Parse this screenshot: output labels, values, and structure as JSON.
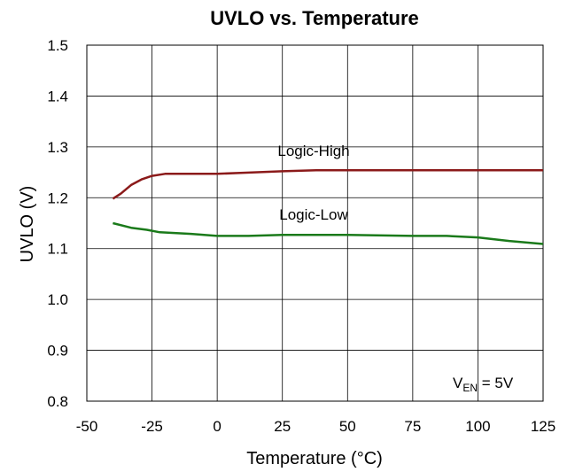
{
  "chart_data": {
    "type": "line",
    "title": "UVLO vs. Temperature",
    "xlabel": "Temperature (°C)",
    "ylabel": "UVLO (V)",
    "xlim": [
      -50,
      125
    ],
    "ylim": [
      0.8,
      1.5
    ],
    "x_ticks": [
      "-50",
      "-25",
      "0",
      "25",
      "50",
      "75",
      "100",
      "125"
    ],
    "y_ticks": [
      "0.8",
      "0.9",
      "1.0",
      "1.1",
      "1.2",
      "1.3",
      "1.4",
      "1.5"
    ],
    "grid": true,
    "annotation": {
      "main": "V",
      "sub": "EN",
      "suffix": " = 5V"
    },
    "series": [
      {
        "name": "Logic-High",
        "color": "#8b1a1a",
        "x": [
          -40,
          -37,
          -33,
          -29,
          -25,
          -20,
          -10,
          0,
          10,
          25,
          38,
          50,
          75,
          100,
          125
        ],
        "y": [
          1.198,
          1.208,
          1.225,
          1.236,
          1.243,
          1.247,
          1.247,
          1.247,
          1.249,
          1.252,
          1.254,
          1.254,
          1.254,
          1.254,
          1.254
        ]
      },
      {
        "name": "Logic-Low",
        "color": "#1a7a1a",
        "x": [
          -40,
          -33,
          -27,
          -22,
          -10,
          0,
          12,
          25,
          50,
          75,
          88,
          100,
          112,
          125
        ],
        "y": [
          1.15,
          1.141,
          1.137,
          1.132,
          1.129,
          1.125,
          1.125,
          1.127,
          1.127,
          1.125,
          1.125,
          1.122,
          1.115,
          1.109
        ]
      }
    ]
  }
}
